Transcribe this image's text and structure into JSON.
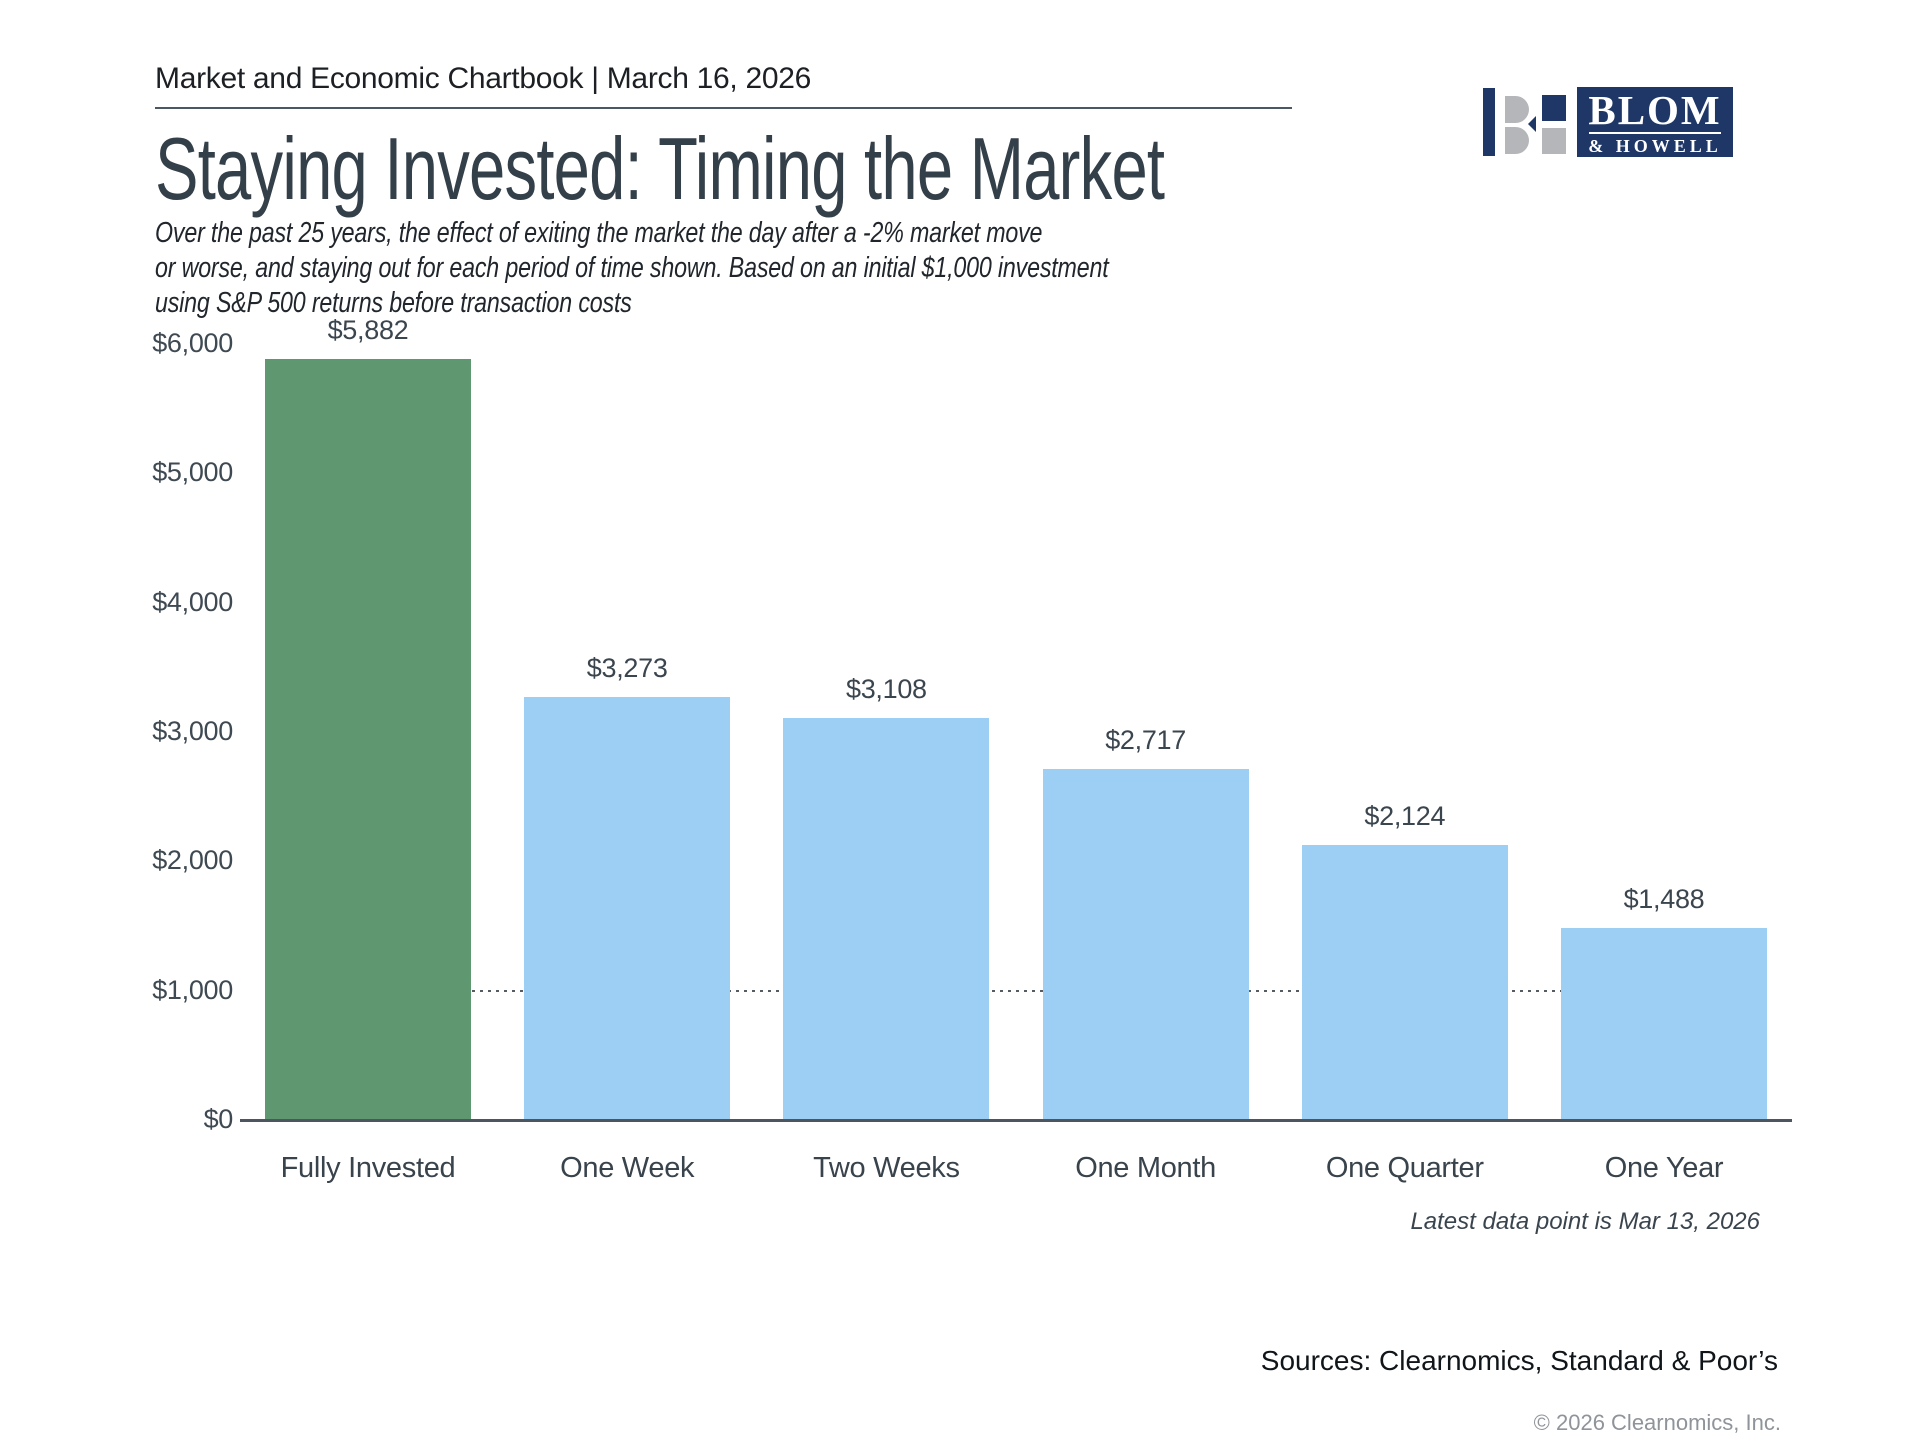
{
  "header": {
    "text": "Market and Economic Chartbook | March 16, 2026"
  },
  "logo": {
    "name": "BLOM",
    "sub": "& HOWELL"
  },
  "title": "Staying Invested: Timing the Market",
  "subtitle_lines": [
    "Over the past 25 years, the effect of exiting the market the day after a -2% market move",
    "or worse, and staying out for each period of time shown. Based on an initial $1,000 investment",
    "using S&P 500 returns before transaction costs"
  ],
  "footnote": "Latest data point is Mar 13, 2026",
  "sources": "Sources: Clearnomics, Standard & Poor’s",
  "copyright": "© 2026 Clearnomics, Inc.",
  "chart_data": {
    "type": "bar",
    "categories": [
      "Fully Invested",
      "One Week",
      "Two Weeks",
      "One Month",
      "One Quarter",
      "One Year"
    ],
    "values": [
      5882,
      3273,
      3108,
      2717,
      2124,
      1488
    ],
    "value_labels": [
      "$5,882",
      "$3,273",
      "$3,108",
      "$2,717",
      "$2,124",
      "$1,488"
    ],
    "y_ticks": [
      "$6,000",
      "$5,000",
      "$4,000",
      "$3,000",
      "$2,000",
      "$1,000",
      "$0"
    ],
    "ylim": [
      0,
      6000
    ],
    "y_tick_step": 1000,
    "grid": false,
    "legend": false,
    "reference_line": {
      "value": 1000,
      "style": "dotted"
    },
    "colors": {
      "highlight": "#5f9770",
      "default": "#9dcef3"
    },
    "highlight_index": 0
  }
}
